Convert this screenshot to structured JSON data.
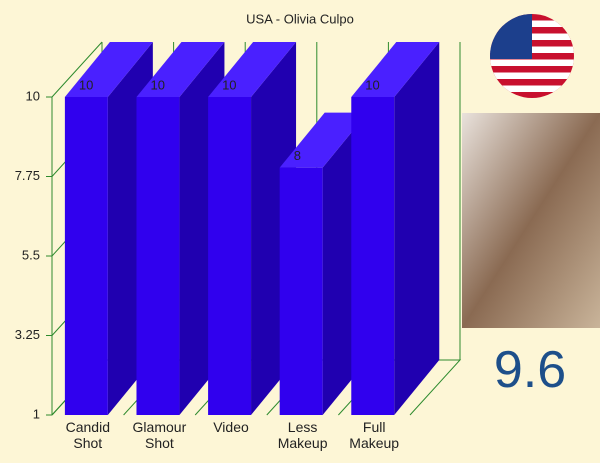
{
  "chart_data": {
    "type": "bar",
    "title": "USA - Olivia Culpo",
    "categories": [
      "Candid Shot",
      "Glamour Shot",
      "Video",
      "Less Makeup",
      "Full Makeup"
    ],
    "values": [
      10,
      10,
      10,
      8,
      10
    ],
    "color": "#3000ee",
    "ylim": [
      1,
      10
    ],
    "yticks": [
      1,
      3.25,
      5.5,
      7.75,
      10
    ],
    "grid": true
  },
  "score": 9.6
}
